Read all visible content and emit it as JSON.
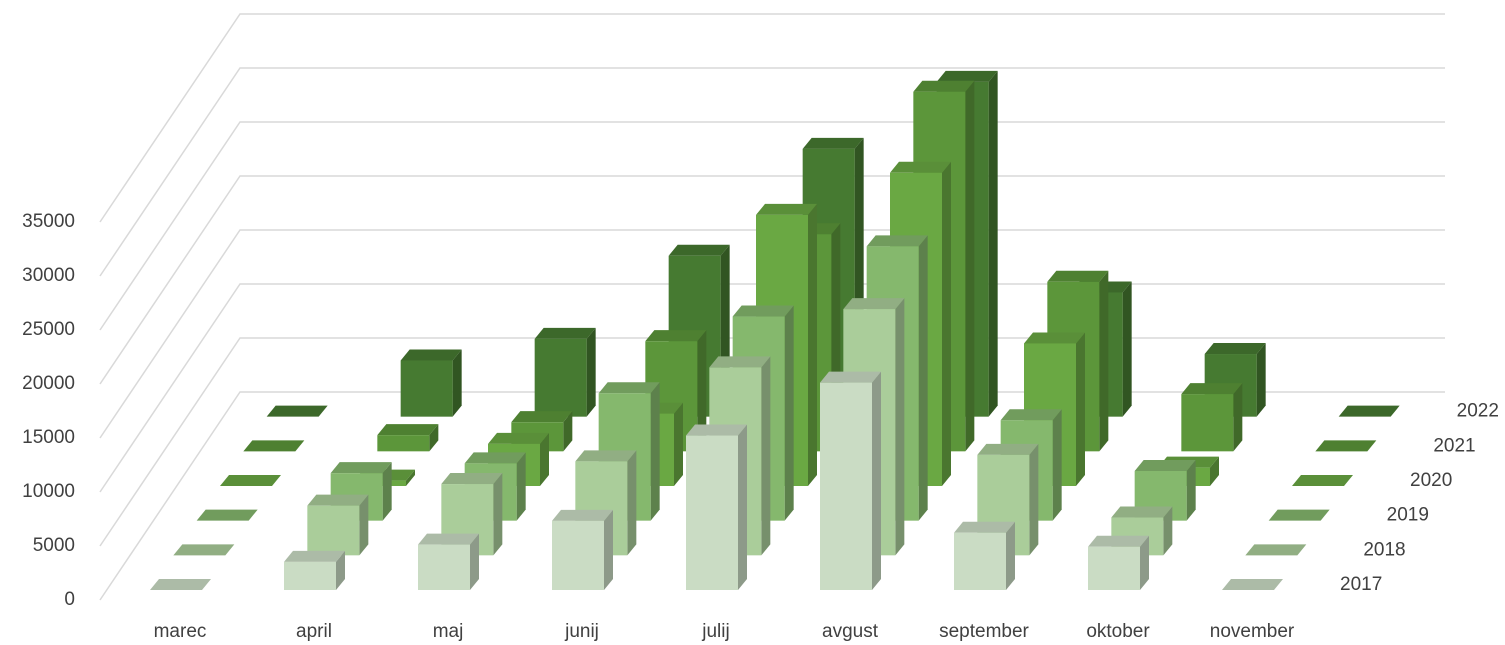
{
  "chart_data": {
    "type": "bar3d",
    "categories": [
      "marec",
      "april",
      "maj",
      "junij",
      "julij",
      "avgust",
      "september",
      "oktober",
      "november"
    ],
    "series": [
      {
        "name": "2017",
        "color": "#cadcc4",
        "values": [
          0,
          2600,
          4200,
          6400,
          14300,
          19200,
          5300,
          4000,
          0
        ]
      },
      {
        "name": "2018",
        "color": "#aacd9a",
        "values": [
          0,
          4600,
          6600,
          8700,
          17400,
          22800,
          9300,
          3500,
          0
        ]
      },
      {
        "name": "2019",
        "color": "#85b86d",
        "values": [
          0,
          4400,
          5300,
          11800,
          18900,
          25400,
          9300,
          4600,
          0
        ]
      },
      {
        "name": "2020",
        "color": "#6aa843",
        "values": [
          0,
          500,
          3900,
          6700,
          25100,
          29000,
          13200,
          1700,
          0
        ]
      },
      {
        "name": "2021",
        "color": "#5c963a",
        "values": [
          0,
          1500,
          2700,
          10200,
          20100,
          33300,
          15700,
          5300,
          0
        ]
      },
      {
        "name": "2022",
        "color": "#467a31",
        "values": [
          0,
          5200,
          7200,
          14900,
          24800,
          31000,
          11500,
          5800,
          0
        ]
      }
    ],
    "ylim": [
      0,
      35000
    ],
    "yticks": [
      0,
      5000,
      10000,
      15000,
      20000,
      25000,
      30000,
      35000
    ],
    "grid": true
  }
}
